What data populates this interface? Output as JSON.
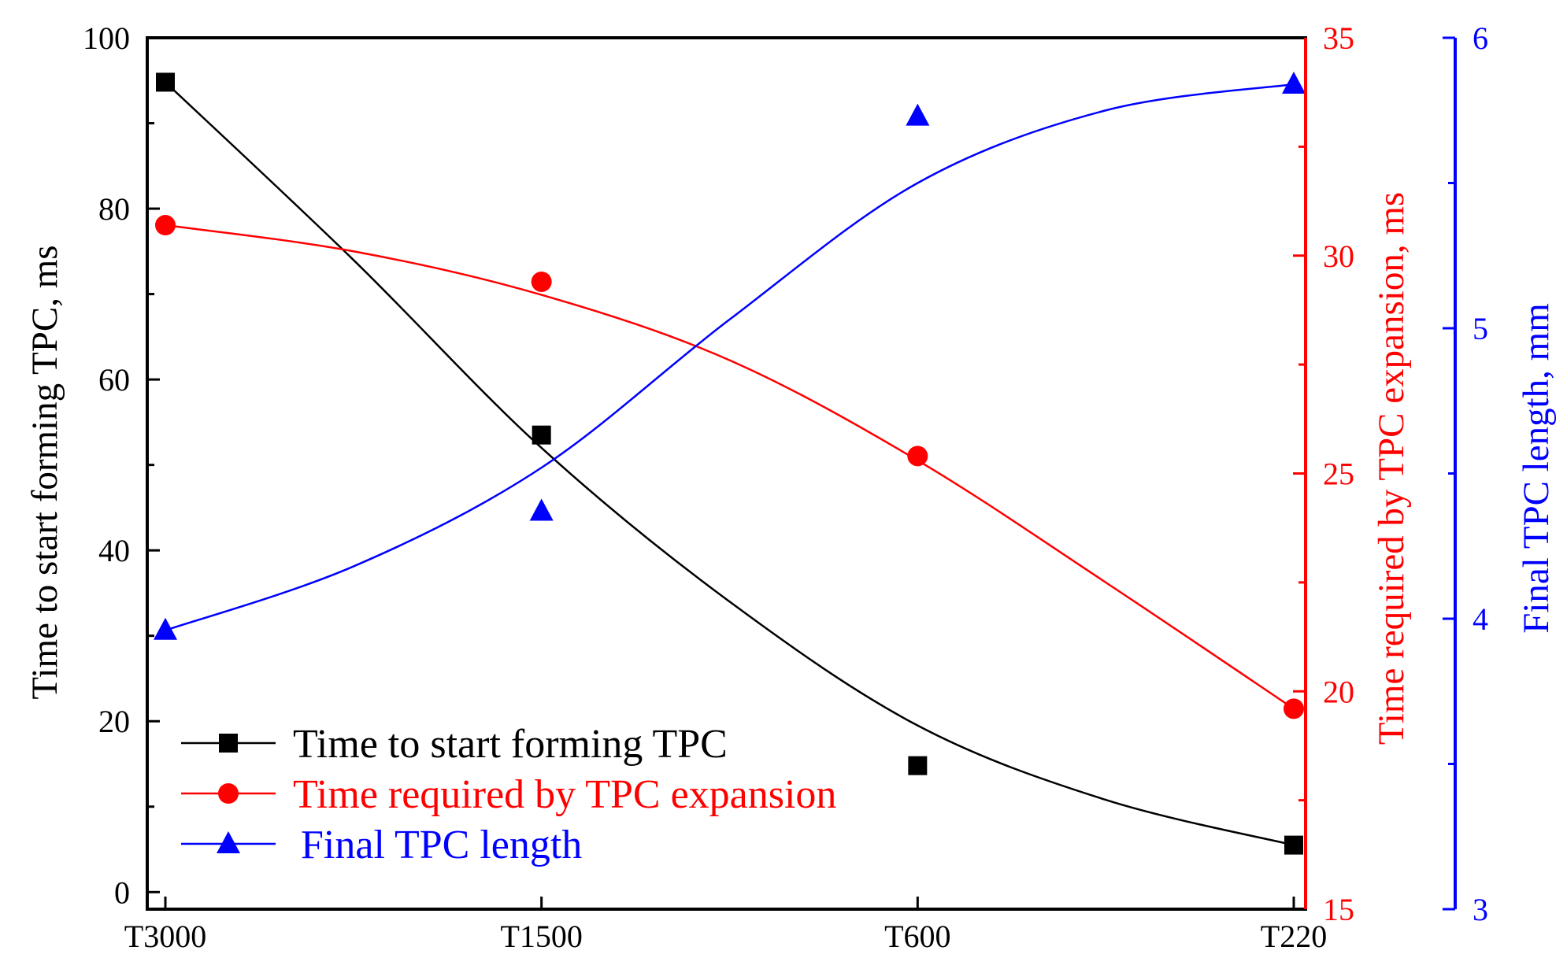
{
  "chart_data": {
    "type": "line",
    "categories": [
      "T3000",
      "T1500",
      "T600",
      "T220"
    ],
    "axes": {
      "left": {
        "label": "Time to start forming TPC, ms",
        "ylim": [
          -2,
          100
        ],
        "ticks": [
          0,
          20,
          40,
          60,
          80,
          100
        ],
        "tick_labels": [
          "0",
          "20",
          "40",
          "60",
          "80",
          "100"
        ],
        "color": "#000000"
      },
      "right_red": {
        "label": "Time required by TPC expansion, ms",
        "ylim": [
          15,
          35
        ],
        "ticks": [
          15,
          20,
          25,
          30,
          35
        ],
        "tick_labels": [
          "15",
          "20",
          "25",
          "30",
          "35"
        ],
        "color": "#ff0000"
      },
      "right_blue": {
        "label": "Final TPC length, mm",
        "ylim": [
          3,
          6
        ],
        "ticks": [
          3,
          4,
          5,
          6
        ],
        "tick_labels": [
          "3",
          "4",
          "5",
          "6"
        ],
        "color": "#0000ff"
      }
    },
    "series": [
      {
        "name": "Time to start forming TPC",
        "axis": "left",
        "marker": "square",
        "color": "#000000",
        "values": [
          94.8,
          53.5,
          14.8,
          5.5
        ],
        "fit": [
          [
            0,
            94.8
          ],
          [
            0.5,
            74
          ],
          [
            1,
            52
          ],
          [
            1.5,
            34
          ],
          [
            2,
            19.5
          ],
          [
            2.5,
            10.8
          ],
          [
            3,
            5.5
          ]
        ]
      },
      {
        "name": "Time required by TPC expansion",
        "axis": "right_red",
        "marker": "circle",
        "color": "#ff0000",
        "values": [
          30.7,
          29.4,
          25.4,
          19.6
        ],
        "fit": [
          [
            0,
            30.7
          ],
          [
            0.5,
            30.1
          ],
          [
            1,
            29.1
          ],
          [
            1.5,
            27.6
          ],
          [
            2,
            25.3
          ],
          [
            2.5,
            22.5
          ],
          [
            3,
            19.6
          ]
        ]
      },
      {
        "name": "Final TPC length",
        "axis": "right_blue",
        "marker": "triangle",
        "color": "#0000ff",
        "values": [
          3.96,
          4.37,
          5.73,
          5.84
        ],
        "fit": [
          [
            0,
            3.96
          ],
          [
            0.5,
            4.18
          ],
          [
            1,
            4.52
          ],
          [
            1.5,
            5.03
          ],
          [
            2,
            5.5
          ],
          [
            2.5,
            5.75
          ],
          [
            3,
            5.84
          ]
        ]
      }
    ],
    "legend": {
      "position": "bottom-left",
      "entries": [
        "Time to start forming TPC",
        "Time required by TPC expansion",
        "Final TPC length"
      ]
    }
  }
}
